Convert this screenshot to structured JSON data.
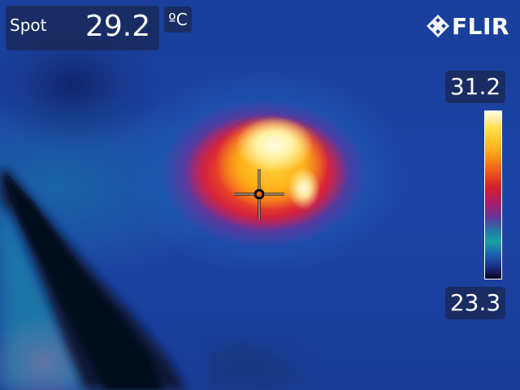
{
  "spot_meter": {
    "label": "Spot",
    "value": "29.2",
    "unit": "ºC"
  },
  "brand": {
    "name": "FLIR",
    "logo_icon": "flir-diamond-logo"
  },
  "temperature_scale": {
    "max": "31.2",
    "min": "23.3",
    "palette": "iron"
  },
  "crosshair": {
    "icon": "spot-crosshair-icon"
  }
}
